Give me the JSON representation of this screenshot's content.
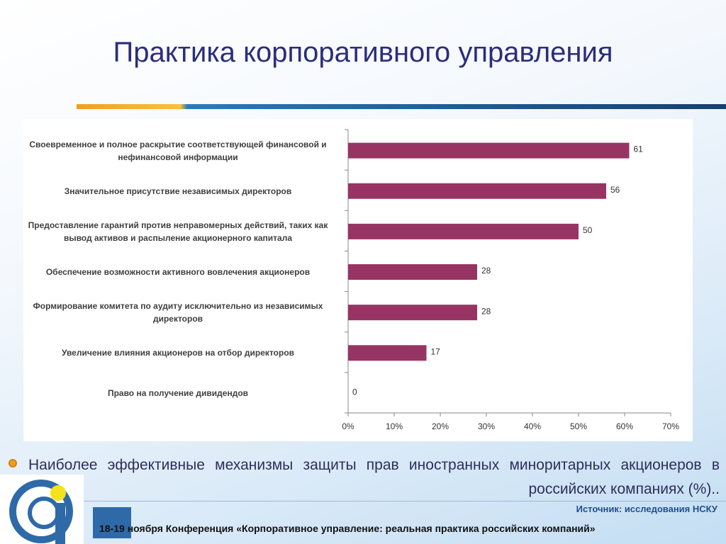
{
  "title": "Практика корпоративного управления",
  "chart_data": {
    "type": "hbar",
    "categories": [
      "Своевременное и полное раскрытие соответствующей финансовой и нефинансовой информации",
      "Значительное присутствие независимых директоров",
      "Предоставление гарантий против неправомерных действий, таких как вывод активов и распыление акционерного капитала",
      "Обеспечение возможности активного вовлечения акционеров",
      "Формирование комитета по аудиту исключительно из независимых директоров",
      "Увеличение влияния акционеров на отбор директоров",
      "Право на получение дивидендов"
    ],
    "values": [
      61,
      56,
      50,
      28,
      28,
      17,
      0
    ],
    "color": "#983463",
    "xlim": [
      0,
      70
    ],
    "xticks": [
      {
        "value": 0,
        "label": "0%"
      },
      {
        "value": 10,
        "label": "10%"
      },
      {
        "value": 20,
        "label": "20%"
      },
      {
        "value": 30,
        "label": "30%"
      },
      {
        "value": 40,
        "label": "40%"
      },
      {
        "value": 50,
        "label": "50%"
      },
      {
        "value": 60,
        "label": "60%"
      },
      {
        "value": 70,
        "label": "70%"
      }
    ]
  },
  "caption": "Наиболее эффективные механизмы защиты прав иностранных миноритарных акционеров в российских компаниях (%)..",
  "source": "Источник: исследования НСКУ",
  "footer": "18-19 ноября Конференция «Корпоративное управление: реальная практика российских компаний»"
}
